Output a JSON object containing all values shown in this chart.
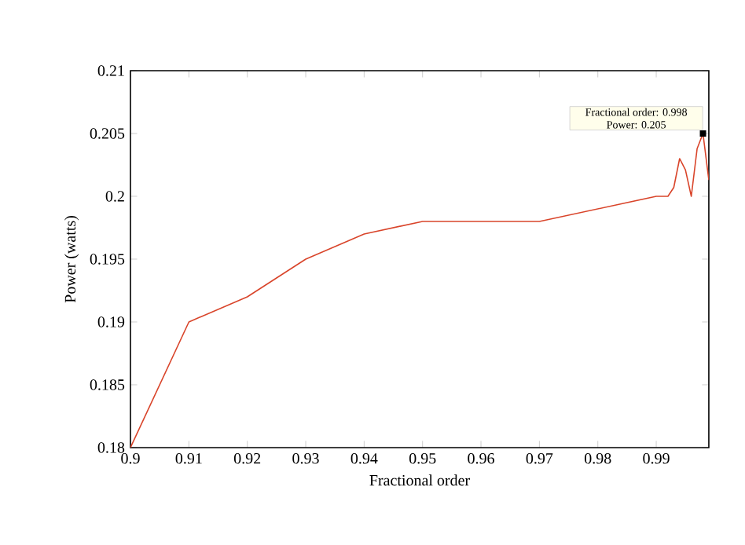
{
  "chart_data": {
    "type": "line",
    "xlabel": "Fractional order",
    "ylabel": "Power (watts)",
    "x": [
      0.9,
      0.91,
      0.92,
      0.93,
      0.94,
      0.95,
      0.97,
      0.99,
      0.992,
      0.993,
      0.994,
      0.995,
      0.996,
      0.997,
      0.998,
      0.999
    ],
    "series": [
      {
        "color": "#d9452b",
        "values": [
          0.18,
          0.19,
          0.192,
          0.195,
          0.197,
          0.198,
          0.198,
          0.2,
          0.2,
          0.2007,
          0.203,
          0.2021,
          0.2,
          0.2038,
          0.205,
          0.2013
        ]
      }
    ],
    "xlim": [
      0.9,
      0.999
    ],
    "ylim": [
      0.18,
      0.21
    ],
    "xticks": [
      0.9,
      0.91,
      0.92,
      0.93,
      0.94,
      0.95,
      0.96,
      0.97,
      0.98,
      0.99
    ],
    "yticks": [
      0.18,
      0.185,
      0.19,
      0.195,
      0.2,
      0.205,
      0.21
    ],
    "annotations": [
      {
        "text": "Fractional order: 0.998\nPower: 0.205",
        "x": 0.998,
        "y": 0.205
      }
    ],
    "grid": false
  }
}
